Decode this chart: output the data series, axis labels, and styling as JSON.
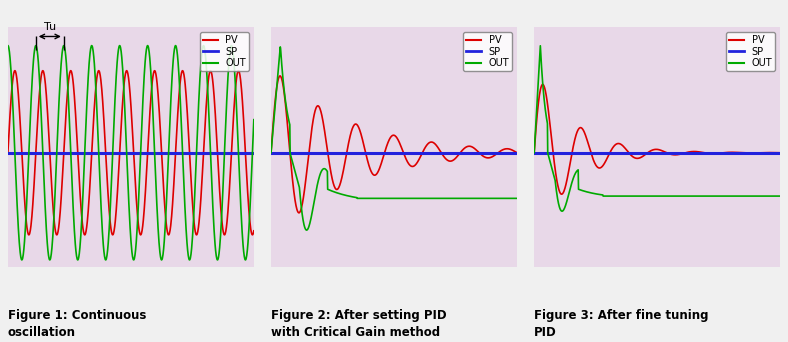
{
  "bg_color": "#e8d8e8",
  "grid_color": "#c0b0c0",
  "pv_color": "#dd0000",
  "sp_color": "#2222dd",
  "out_color": "#00aa00",
  "fig_captions": [
    "Figure 1: Continuous\noscillation",
    "Figure 2: After setting PID\nwith Critical Gain method",
    "Figure 3: After fine tuning\nPID"
  ],
  "caption_fontsize": 8.5,
  "legend_fontsize": 7,
  "sp_level": 0.5,
  "fig_bg": "#f0f0f0"
}
